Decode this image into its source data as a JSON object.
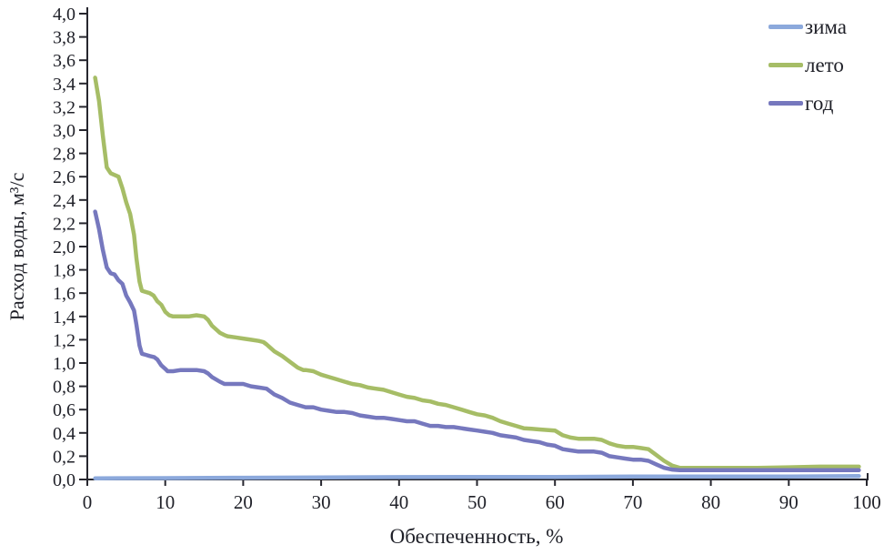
{
  "figure": {
    "background": "#ffffff",
    "axis_color": "#26262e",
    "text_color": "#1f2028"
  },
  "chart_data": {
    "type": "line",
    "title": "",
    "xlabel": "Обеспеченность, %",
    "ylabel": "Расход воды, м³/с",
    "xlim": [
      0,
      100
    ],
    "ylim": [
      0,
      4.0
    ],
    "grid": false,
    "legend_position": "top-right",
    "x_ticks": [
      0,
      10,
      20,
      30,
      40,
      50,
      60,
      70,
      80,
      90,
      100
    ],
    "x_tick_labels": [
      "0",
      "10",
      "20",
      "30",
      "40",
      "50",
      "60",
      "70",
      "80",
      "90",
      "100"
    ],
    "y_ticks": [
      0,
      0.2,
      0.4,
      0.6,
      0.8,
      1.0,
      1.2,
      1.4,
      1.6,
      1.8,
      2.0,
      2.2,
      2.4,
      2.6,
      2.8,
      3.0,
      3.2,
      3.4,
      3.6,
      3.8,
      4.0
    ],
    "y_tick_labels": [
      "0,0",
      "0,2",
      "0,4",
      "0,6",
      "0,8",
      "1,0",
      "1,2",
      "1,4",
      "1,6",
      "1,8",
      "2,0",
      "2,2",
      "2,4",
      "2,6",
      "2,8",
      "3,0",
      "3,2",
      "3,4",
      "3,6",
      "3,8",
      "4,0"
    ],
    "series": [
      {
        "name": "зима",
        "color": "#8CA9DC",
        "points": [
          [
            1,
            0.01
          ],
          [
            10,
            0.012
          ],
          [
            20,
            0.015
          ],
          [
            30,
            0.018
          ],
          [
            40,
            0.02
          ],
          [
            50,
            0.022
          ],
          [
            60,
            0.022
          ],
          [
            70,
            0.025
          ],
          [
            80,
            0.025
          ],
          [
            90,
            0.025
          ],
          [
            99,
            0.03
          ]
        ]
      },
      {
        "name": "лето",
        "color": "#A6BD66",
        "points": [
          [
            1,
            3.45
          ],
          [
            1.5,
            3.25
          ],
          [
            2,
            2.95
          ],
          [
            2.5,
            2.68
          ],
          [
            3,
            2.63
          ],
          [
            4,
            2.6
          ],
          [
            4.5,
            2.5
          ],
          [
            5,
            2.38
          ],
          [
            5.5,
            2.28
          ],
          [
            6,
            2.1
          ],
          [
            6.3,
            1.9
          ],
          [
            6.7,
            1.7
          ],
          [
            7,
            1.62
          ],
          [
            8,
            1.6
          ],
          [
            8.5,
            1.58
          ],
          [
            9,
            1.53
          ],
          [
            9.5,
            1.5
          ],
          [
            10,
            1.44
          ],
          [
            10.5,
            1.41
          ],
          [
            11,
            1.4
          ],
          [
            12,
            1.4
          ],
          [
            13,
            1.4
          ],
          [
            14,
            1.41
          ],
          [
            15,
            1.4
          ],
          [
            15.5,
            1.37
          ],
          [
            16,
            1.32
          ],
          [
            17,
            1.26
          ],
          [
            17.6,
            1.24
          ],
          [
            18,
            1.23
          ],
          [
            19,
            1.22
          ],
          [
            20,
            1.21
          ],
          [
            21,
            1.2
          ],
          [
            22,
            1.19
          ],
          [
            22.6,
            1.18
          ],
          [
            23,
            1.16
          ],
          [
            24,
            1.1
          ],
          [
            25,
            1.06
          ],
          [
            26,
            1.01
          ],
          [
            27,
            0.96
          ],
          [
            27.7,
            0.94
          ],
          [
            28,
            0.94
          ],
          [
            29,
            0.93
          ],
          [
            30,
            0.9
          ],
          [
            31,
            0.88
          ],
          [
            32,
            0.86
          ],
          [
            33,
            0.84
          ],
          [
            34,
            0.82
          ],
          [
            35,
            0.81
          ],
          [
            36,
            0.79
          ],
          [
            37,
            0.78
          ],
          [
            38,
            0.77
          ],
          [
            39,
            0.75
          ],
          [
            40,
            0.73
          ],
          [
            41,
            0.71
          ],
          [
            42,
            0.7
          ],
          [
            43,
            0.68
          ],
          [
            44,
            0.67
          ],
          [
            45,
            0.65
          ],
          [
            46,
            0.64
          ],
          [
            47,
            0.62
          ],
          [
            48,
            0.6
          ],
          [
            49,
            0.58
          ],
          [
            50,
            0.56
          ],
          [
            51,
            0.55
          ],
          [
            52,
            0.53
          ],
          [
            53,
            0.5
          ],
          [
            54,
            0.48
          ],
          [
            55,
            0.46
          ],
          [
            56,
            0.44
          ],
          [
            57,
            0.435
          ],
          [
            58,
            0.43
          ],
          [
            59,
            0.425
          ],
          [
            60,
            0.42
          ],
          [
            61,
            0.38
          ],
          [
            62,
            0.36
          ],
          [
            63,
            0.35
          ],
          [
            64,
            0.35
          ],
          [
            65,
            0.35
          ],
          [
            66,
            0.34
          ],
          [
            67,
            0.31
          ],
          [
            67.5,
            0.3
          ],
          [
            68,
            0.29
          ],
          [
            69,
            0.28
          ],
          [
            70,
            0.28
          ],
          [
            71,
            0.27
          ],
          [
            72,
            0.26
          ],
          [
            73,
            0.21
          ],
          [
            74,
            0.16
          ],
          [
            75,
            0.12
          ],
          [
            76,
            0.1
          ],
          [
            78,
            0.1
          ],
          [
            80,
            0.1
          ],
          [
            83,
            0.1
          ],
          [
            86,
            0.1
          ],
          [
            90,
            0.105
          ],
          [
            94,
            0.11
          ],
          [
            99,
            0.11
          ]
        ]
      },
      {
        "name": "год",
        "color": "#7678BE",
        "points": [
          [
            1,
            2.3
          ],
          [
            1.5,
            2.15
          ],
          [
            2,
            1.97
          ],
          [
            2.5,
            1.82
          ],
          [
            3,
            1.77
          ],
          [
            3.5,
            1.76
          ],
          [
            4,
            1.71
          ],
          [
            4.5,
            1.68
          ],
          [
            5,
            1.58
          ],
          [
            5.5,
            1.52
          ],
          [
            6,
            1.45
          ],
          [
            6.3,
            1.33
          ],
          [
            6.7,
            1.15
          ],
          [
            7,
            1.08
          ],
          [
            7.5,
            1.07
          ],
          [
            8,
            1.06
          ],
          [
            8.6,
            1.05
          ],
          [
            9,
            1.03
          ],
          [
            9.5,
            0.98
          ],
          [
            10,
            0.95
          ],
          [
            10.3,
            0.93
          ],
          [
            11,
            0.93
          ],
          [
            12,
            0.94
          ],
          [
            13,
            0.94
          ],
          [
            14,
            0.94
          ],
          [
            15,
            0.93
          ],
          [
            15.5,
            0.91
          ],
          [
            16,
            0.88
          ],
          [
            17,
            0.84
          ],
          [
            17.6,
            0.82
          ],
          [
            18,
            0.82
          ],
          [
            19,
            0.82
          ],
          [
            20,
            0.82
          ],
          [
            21,
            0.8
          ],
          [
            22,
            0.79
          ],
          [
            23,
            0.78
          ],
          [
            23.8,
            0.74
          ],
          [
            24,
            0.73
          ],
          [
            25,
            0.7
          ],
          [
            26,
            0.66
          ],
          [
            27,
            0.64
          ],
          [
            28,
            0.62
          ],
          [
            29,
            0.62
          ],
          [
            30,
            0.6
          ],
          [
            31,
            0.59
          ],
          [
            32,
            0.58
          ],
          [
            33,
            0.58
          ],
          [
            34,
            0.57
          ],
          [
            35,
            0.55
          ],
          [
            36,
            0.54
          ],
          [
            37,
            0.53
          ],
          [
            38,
            0.53
          ],
          [
            39,
            0.52
          ],
          [
            40,
            0.51
          ],
          [
            41,
            0.5
          ],
          [
            42,
            0.5
          ],
          [
            43,
            0.48
          ],
          [
            44,
            0.46
          ],
          [
            45,
            0.46
          ],
          [
            46,
            0.45
          ],
          [
            47,
            0.45
          ],
          [
            48,
            0.44
          ],
          [
            49,
            0.43
          ],
          [
            50,
            0.42
          ],
          [
            51,
            0.41
          ],
          [
            52,
            0.4
          ],
          [
            53,
            0.38
          ],
          [
            54,
            0.37
          ],
          [
            55,
            0.36
          ],
          [
            56,
            0.34
          ],
          [
            57,
            0.33
          ],
          [
            58,
            0.32
          ],
          [
            59,
            0.3
          ],
          [
            60,
            0.29
          ],
          [
            61,
            0.26
          ],
          [
            62,
            0.25
          ],
          [
            63,
            0.24
          ],
          [
            64,
            0.24
          ],
          [
            65,
            0.24
          ],
          [
            66,
            0.23
          ],
          [
            67,
            0.2
          ],
          [
            68,
            0.19
          ],
          [
            69,
            0.18
          ],
          [
            70,
            0.17
          ],
          [
            71,
            0.17
          ],
          [
            72,
            0.16
          ],
          [
            73,
            0.13
          ],
          [
            74,
            0.1
          ],
          [
            75,
            0.085
          ],
          [
            76,
            0.08
          ],
          [
            80,
            0.08
          ],
          [
            85,
            0.08
          ],
          [
            90,
            0.08
          ],
          [
            95,
            0.08
          ],
          [
            99,
            0.08
          ]
        ]
      }
    ]
  }
}
